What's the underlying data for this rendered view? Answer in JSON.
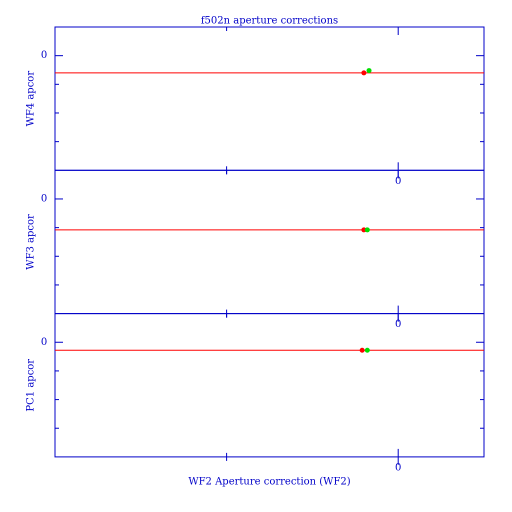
{
  "chart_data": [
    {
      "type": "scatter",
      "title": "f502n aperture corrections",
      "ylabel": "WF4 apcor",
      "xlim": [
        -0.2,
        0.05
      ],
      "xticks": [
        0
      ],
      "xminorticks": [
        -0.1
      ],
      "ylim": [
        -0.2,
        0.05
      ],
      "yticks": [
        0
      ],
      "yminorticks": [
        -0.05,
        -0.1,
        -0.15
      ],
      "reference_line": -0.03,
      "reference_color": "#ff0000",
      "series": [
        {
          "color": "#ff0000",
          "x": [
            -0.02
          ],
          "y": [
            -0.03
          ]
        },
        {
          "color": "#00e000",
          "x": [
            -0.017
          ],
          "y": [
            -0.026
          ]
        }
      ]
    },
    {
      "type": "scatter",
      "ylabel": "WF3 apcor",
      "xlim": [
        -0.2,
        0.05
      ],
      "xticks": [
        0
      ],
      "xminorticks": [
        -0.1
      ],
      "ylim": [
        -0.2,
        0.05
      ],
      "yticks": [
        0
      ],
      "yminorticks": [
        -0.05,
        -0.1,
        -0.15
      ],
      "reference_line": -0.054,
      "reference_color": "#ff0000",
      "series": [
        {
          "color": "#ff0000",
          "x": [
            -0.02
          ],
          "y": [
            -0.054
          ]
        },
        {
          "color": "#00e000",
          "x": [
            -0.018
          ],
          "y": [
            -0.054
          ]
        }
      ]
    },
    {
      "type": "scatter",
      "ylabel": "PC1 apcor",
      "xlabel": "WF2 Aperture correction (WF2)",
      "xlim": [
        -0.2,
        0.05
      ],
      "xticks": [
        0
      ],
      "xminorticks": [
        -0.1
      ],
      "ylim": [
        -0.2,
        0.05
      ],
      "yticks": [
        0
      ],
      "yminorticks": [
        -0.05,
        -0.1,
        -0.15
      ],
      "reference_line": -0.014,
      "reference_color": "#ff0000",
      "series": [
        {
          "color": "#ff0000",
          "x": [
            -0.021
          ],
          "y": [
            -0.014
          ]
        },
        {
          "color": "#00e000",
          "x": [
            -0.018
          ],
          "y": [
            -0.014
          ]
        }
      ]
    }
  ]
}
